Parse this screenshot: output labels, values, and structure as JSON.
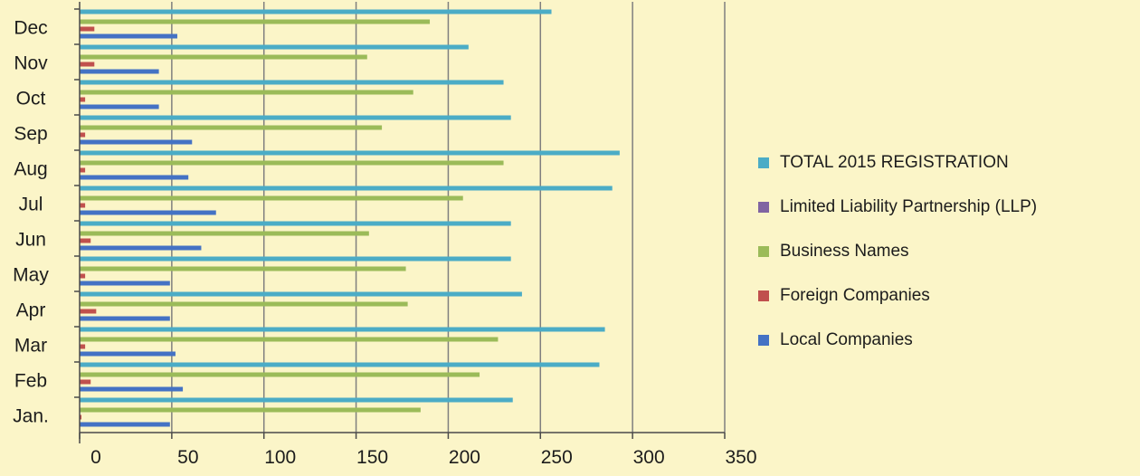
{
  "chart_data": {
    "type": "bar",
    "orientation": "horizontal",
    "title": "",
    "xlabel": "",
    "ylabel": "",
    "categories": [
      "Jan.",
      "Feb",
      "Mar",
      "Apr",
      "May",
      "Jun",
      "Jul",
      "Aug",
      "Sep",
      "Oct",
      "Nov",
      "Dec"
    ],
    "xlim": [
      0,
      350
    ],
    "x_ticks": [
      "0",
      "50",
      "100",
      "150",
      "200",
      "250",
      "300",
      "350"
    ],
    "grid": "vertical",
    "legend_position": "right",
    "series": [
      {
        "name": "Local Companies",
        "color": "#4472c4",
        "values": [
          49,
          56,
          52,
          49,
          49,
          66,
          74,
          59,
          61,
          43,
          43,
          53
        ]
      },
      {
        "name": "Foreign Companies",
        "color": "#c0504d",
        "values": [
          1,
          6,
          3,
          9,
          3,
          6,
          3,
          3,
          3,
          3,
          8,
          8
        ]
      },
      {
        "name": "Business Names",
        "color": "#9bbb59",
        "values": [
          185,
          217,
          227,
          178,
          177,
          157,
          208,
          230,
          164,
          181,
          156,
          190
        ]
      },
      {
        "name": "Limited Liability Partnership (LLP)",
        "color": "#8064a2",
        "values": [
          0,
          0,
          0,
          0,
          0,
          0,
          0,
          0,
          0,
          0,
          0,
          0
        ]
      },
      {
        "name": "TOTAL 2015 REGISTRATION",
        "color": "#4bacc6",
        "values": [
          235,
          282,
          285,
          240,
          234,
          234,
          289,
          293,
          234,
          230,
          211,
          256
        ]
      }
    ],
    "legend_order": [
      "TOTAL 2015 REGISTRATION",
      "Limited Liability Partnership (LLP)",
      "Business Names",
      "Foreign Companies",
      "Local Companies"
    ]
  },
  "colors": {
    "background": "#fbf5c8",
    "grid": "#7f7f7f",
    "axis": "#4a4a4a"
  }
}
